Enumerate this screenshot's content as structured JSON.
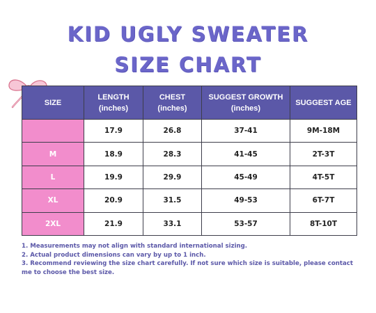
{
  "title": {
    "line1": "KID UGLY SWEATER",
    "line2": "SIZE CHART"
  },
  "table": {
    "headers": [
      {
        "line1": "SIZE",
        "line2": ""
      },
      {
        "line1": "LENGTH",
        "line2": "(inches)"
      },
      {
        "line1": "CHEST",
        "line2": "(inches)"
      },
      {
        "line1": "SUGGEST GROWTH",
        "line2": "(inches)"
      },
      {
        "line1": "SUGGEST AGE",
        "line2": ""
      }
    ],
    "rows": [
      {
        "size": "",
        "length": "17.9",
        "chest": "26.8",
        "growth": "37-41",
        "age": "9M-18M"
      },
      {
        "size": "M",
        "length": "18.9",
        "chest": "28.3",
        "growth": "41-45",
        "age": "2T-3T"
      },
      {
        "size": "L",
        "length": "19.9",
        "chest": "29.9",
        "growth": "45-49",
        "age": "4T-5T"
      },
      {
        "size": "XL",
        "length": "20.9",
        "chest": "31.5",
        "growth": "49-53",
        "age": "6T-7T"
      },
      {
        "size": "2XL",
        "length": "21.9",
        "chest": "33.1",
        "growth": "53-57",
        "age": "8T-10T"
      }
    ]
  },
  "notes": [
    "1. Measurements may not align with standard international sizing.",
    "2. Actual product dimensions can vary by up to 1 inch.",
    "3. Recommend reviewing the size chart carefully. If not sure which size is suitable, please contact me to choose the best size."
  ],
  "colors": {
    "title": "#6b66c9",
    "header_bg": "#5b58a8",
    "size_cell_bg": "#f28dcc",
    "notes_text": "#5b58a8"
  },
  "icons": {
    "bow": "pink-ribbon-bow-icon"
  }
}
